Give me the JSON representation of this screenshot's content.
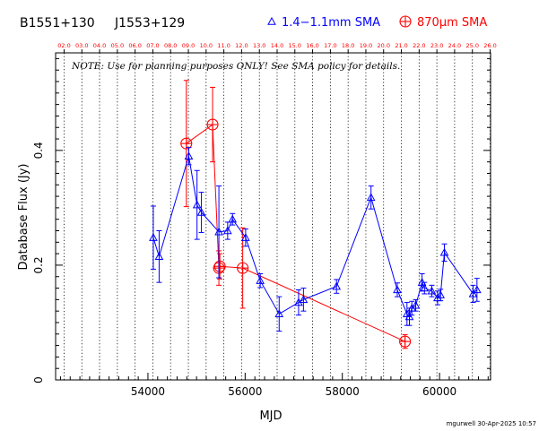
{
  "chart_data": {
    "type": "scatter",
    "source_names": {
      "left": "B1551+130",
      "right": "J1553+129"
    },
    "legend": [
      {
        "key": "blue",
        "label": "1.4−1.1mm SMA",
        "marker": "triangle",
        "color": "#0000ff"
      },
      {
        "key": "red",
        "label": "870μm SMA",
        "marker": "circle-plus",
        "color": "#ff0000"
      }
    ],
    "legend_placement": "top-right",
    "note": "NOTE: Use for planning purposes ONLY!  See SMA policy for details.",
    "xlabel": "MJD",
    "ylabel": "Database Flux (Jy)",
    "xlim": [
      52100,
      61050
    ],
    "ylim": [
      0,
      0.57
    ],
    "x_ticks": [
      54000,
      56000,
      58000,
      60000
    ],
    "x_tick_labels": [
      "54000",
      "56000",
      "58000",
      "60000"
    ],
    "y_ticks": [
      0,
      0.2,
      0.4
    ],
    "y_tick_labels": [
      "0",
      "0.2",
      "0.4"
    ],
    "top_axis_labels": [
      "02.0",
      "03.0",
      "04.0",
      "05.0",
      "06.0",
      "07.0",
      "08.0",
      "09.0",
      "10.0",
      "11.0",
      "12.0",
      "13.0",
      "14.0",
      "15.0",
      "16.0",
      "17.0",
      "18.0",
      "19.0",
      "20.0",
      "21.0",
      "22.0",
      "23.0",
      "24.0",
      "25.0",
      "26.0"
    ],
    "top_axis_mjd": [
      52275,
      52640,
      53005,
      53371,
      53736,
      54101,
      54466,
      54832,
      55197,
      55562,
      55927,
      56293,
      56658,
      57023,
      57388,
      57754,
      58119,
      58484,
      58849,
      59215,
      59580,
      59945,
      60310,
      60676,
      61041
    ],
    "grid": "vertical dotted lines at year marks",
    "series": [
      {
        "name": "1.4−1.1mm SMA",
        "color": "#0000ff",
        "marker": "triangle",
        "connected": true,
        "points": [
          {
            "x": 54110,
            "y": 0.248,
            "err": 0.055
          },
          {
            "x": 54230,
            "y": 0.215,
            "err": 0.045
          },
          {
            "x": 54840,
            "y": 0.39,
            "err": 0.015
          },
          {
            "x": 55010,
            "y": 0.305,
            "err": 0.06
          },
          {
            "x": 55100,
            "y": 0.292,
            "err": 0.035
          },
          {
            "x": 55460,
            "y": 0.258,
            "err": 0.08
          },
          {
            "x": 55640,
            "y": 0.26,
            "err": 0.015
          },
          {
            "x": 55740,
            "y": 0.28,
            "err": 0.01
          },
          {
            "x": 56010,
            "y": 0.248,
            "err": 0.015
          },
          {
            "x": 56310,
            "y": 0.173,
            "err": 0.012
          },
          {
            "x": 56700,
            "y": 0.115,
            "err": 0.03
          },
          {
            "x": 57100,
            "y": 0.135,
            "err": 0.022
          },
          {
            "x": 57200,
            "y": 0.14,
            "err": 0.02
          },
          {
            "x": 57880,
            "y": 0.163,
            "err": 0.012
          },
          {
            "x": 58590,
            "y": 0.318,
            "err": 0.02
          },
          {
            "x": 59130,
            "y": 0.157,
            "err": 0.012
          },
          {
            "x": 59330,
            "y": 0.115,
            "err": 0.02
          },
          {
            "x": 59380,
            "y": 0.11,
            "err": 0.015
          },
          {
            "x": 59430,
            "y": 0.125,
            "err": 0.012
          },
          {
            "x": 59510,
            "y": 0.13,
            "err": 0.01
          },
          {
            "x": 59640,
            "y": 0.17,
            "err": 0.015
          },
          {
            "x": 59690,
            "y": 0.16,
            "err": 0.01
          },
          {
            "x": 59840,
            "y": 0.155,
            "err": 0.01
          },
          {
            "x": 59960,
            "y": 0.143,
            "err": 0.012
          },
          {
            "x": 60020,
            "y": 0.148,
            "err": 0.01
          },
          {
            "x": 60100,
            "y": 0.222,
            "err": 0.015
          },
          {
            "x": 60690,
            "y": 0.15,
            "err": 0.015
          },
          {
            "x": 60770,
            "y": 0.157,
            "err": 0.02
          }
        ]
      },
      {
        "name": "870μm SMA",
        "color": "#ff0000",
        "marker": "circle-plus",
        "connected": true,
        "points": [
          {
            "x": 54790,
            "y": 0.412,
            "err": 0.11
          },
          {
            "x": 55330,
            "y": 0.445,
            "err": 0.065
          },
          {
            "x": 55460,
            "y": 0.195,
            "err": 0.03
          },
          {
            "x": 55480,
            "y": 0.198,
            "err": 0.022
          },
          {
            "x": 55950,
            "y": 0.195,
            "err": 0.07
          },
          {
            "x": 59290,
            "y": 0.067,
            "err": 0.012
          }
        ]
      }
    ],
    "footer": "mgurwell 30-Apr-2025 10:57"
  }
}
